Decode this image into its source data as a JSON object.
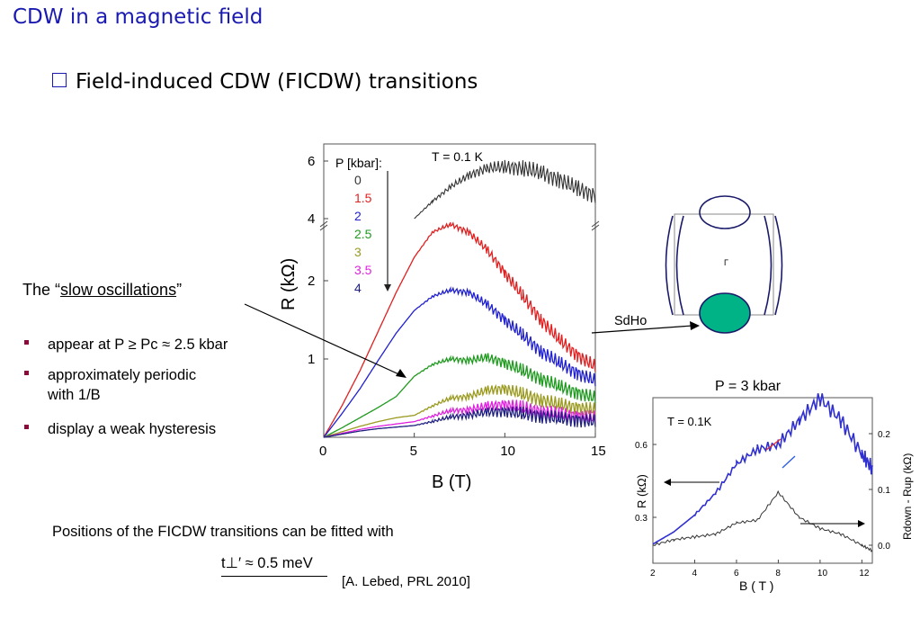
{
  "slide": {
    "title": "CDW in a magnetic field",
    "subtitle": "Field-induced CDW (FICDW) transitions",
    "slow_prefix": "The “",
    "slow_term": "slow oscillations",
    "slow_suffix": "”",
    "bullets": [
      "appear at P ≥ Pc ≈ 2.5 kbar",
      "approximately periodic",
      "with 1/B",
      "display a weak hysteresis"
    ],
    "positions_text": "Positions of the FICDW transitions can be fitted with",
    "tperp_text": "t⊥′ ≈ 0.5 meV",
    "reference": "[A. Lebed, PRL 2010]",
    "sdho_label": "SdHo",
    "gamma_label": "Γ",
    "colors": {
      "title": "#1a1ab0",
      "bullet": "#8b0a3a",
      "pocket": "#00b386"
    }
  },
  "chart_data": [
    {
      "type": "line",
      "xlabel": "B (T)",
      "ylabel": "R (kΩ)",
      "annotation": "T = 0.1 K",
      "legend_title": "P [kbar]:",
      "xlim": [
        0,
        15
      ],
      "x_ticks": [
        "0",
        "5",
        "10",
        "15"
      ],
      "y_ticks": [
        "1",
        "2",
        "4",
        "6"
      ],
      "axis_break": "between 2.7 and 4",
      "x": [
        0,
        1,
        2,
        3,
        4,
        5,
        6,
        7,
        8,
        9,
        10,
        11,
        12,
        13,
        14,
        15
      ],
      "series": [
        {
          "name": "0",
          "color": "#333333",
          "values": [
            null,
            null,
            null,
            null,
            null,
            4.0,
            4.6,
            5.1,
            5.5,
            5.75,
            5.8,
            5.75,
            5.6,
            5.35,
            5.05,
            4.8
          ]
        },
        {
          "name": "1.5",
          "color": "#e02020",
          "values": [
            0,
            0.4,
            0.85,
            1.35,
            1.85,
            2.3,
            2.62,
            2.72,
            2.62,
            2.4,
            2.1,
            1.8,
            1.5,
            1.25,
            1.05,
            0.9
          ]
        },
        {
          "name": "2",
          "color": "#2020d0",
          "values": [
            0,
            0.3,
            0.62,
            0.98,
            1.33,
            1.62,
            1.8,
            1.88,
            1.85,
            1.7,
            1.5,
            1.3,
            1.1,
            0.95,
            0.82,
            0.72
          ]
        },
        {
          "name": "2.5",
          "color": "#1f9a1f",
          "values": [
            0,
            0.12,
            0.25,
            0.38,
            0.52,
            0.78,
            0.93,
            1.0,
            0.98,
            1.02,
            0.95,
            0.85,
            0.75,
            0.65,
            0.57,
            0.5
          ]
        },
        {
          "name": "3",
          "color": "#9a9a1f",
          "values": [
            0,
            0.07,
            0.14,
            0.2,
            0.25,
            0.28,
            0.4,
            0.5,
            0.52,
            0.6,
            0.62,
            0.55,
            0.48,
            0.42,
            0.38,
            0.35
          ]
        },
        {
          "name": "3.5",
          "color": "#e020e0",
          "values": [
            0,
            0.05,
            0.1,
            0.14,
            0.17,
            0.2,
            0.27,
            0.34,
            0.35,
            0.4,
            0.42,
            0.38,
            0.33,
            0.3,
            0.27,
            0.25
          ]
        },
        {
          "name": "4",
          "color": "#202080",
          "values": [
            0,
            0.04,
            0.08,
            0.11,
            0.13,
            0.15,
            0.2,
            0.26,
            0.28,
            0.32,
            0.33,
            0.3,
            0.27,
            0.24,
            0.22,
            0.2
          ]
        }
      ]
    },
    {
      "type": "line",
      "title": "P = 3 kbar",
      "annotation": "T = 0.1K",
      "xlabel": "B ( T )",
      "ylabel": "R (kΩ)",
      "ylabel_right": "Rdown - Rup (kΩ)",
      "xlim": [
        2,
        12.5
      ],
      "x_ticks": [
        "2",
        "4",
        "6",
        "8",
        "10",
        "12"
      ],
      "y_ticks": [
        "0.3",
        "0.6"
      ],
      "y_ticks_right": [
        "0.0",
        "0.1",
        "0.2"
      ],
      "x": [
        2,
        3,
        4,
        5,
        6,
        7,
        8,
        9,
        10,
        11,
        12,
        12.5
      ],
      "series": [
        {
          "name": "R",
          "color": "#3030d0",
          "values": [
            0.19,
            0.24,
            0.31,
            0.4,
            0.52,
            0.58,
            0.6,
            0.7,
            0.79,
            0.7,
            0.56,
            0.5
          ]
        },
        {
          "name": "Rdown - Rup",
          "color": "#333333",
          "values": [
            0.0,
            0.01,
            0.015,
            0.02,
            0.04,
            0.045,
            0.095,
            0.05,
            0.03,
            0.02,
            0.0,
            -0.01
          ]
        }
      ]
    }
  ]
}
